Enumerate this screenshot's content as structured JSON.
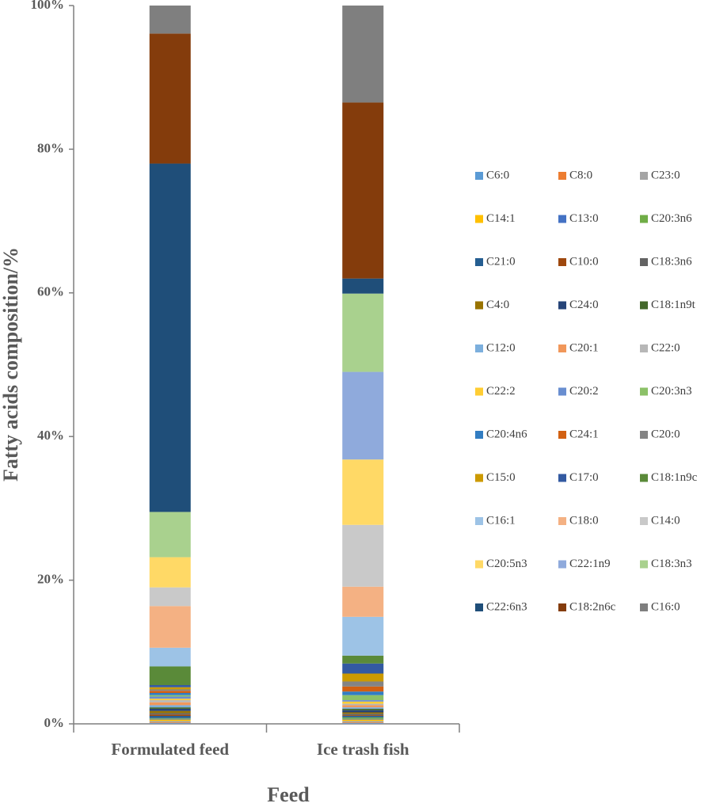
{
  "chart_data": {
    "type": "stacked_bar_100",
    "x_label": "Feed",
    "y_label": "Fatty acids composition/%",
    "categories": [
      "Formulated feed",
      "Ice trash fish"
    ],
    "ylim": [
      0,
      100
    ],
    "yticks": [
      {
        "value": 0,
        "label": "0%"
      },
      {
        "value": 20,
        "label": "20%"
      },
      {
        "value": 40,
        "label": "40%"
      },
      {
        "value": 60,
        "label": "60%"
      },
      {
        "value": 80,
        "label": "80%"
      },
      {
        "value": 100,
        "label": "100%"
      }
    ],
    "legend_position": "right",
    "series": [
      {
        "name": "C6:0",
        "color": "#5b9bd5",
        "values": [
          0.1,
          0.1
        ]
      },
      {
        "name": "C8:0",
        "color": "#ed7d31",
        "values": [
          0.1,
          0.1
        ]
      },
      {
        "name": "C23:0",
        "color": "#a5a5a5",
        "values": [
          0.2,
          0.2
        ]
      },
      {
        "name": "C14:1",
        "color": "#ffc000",
        "values": [
          0.2,
          0.2
        ]
      },
      {
        "name": "C13:0",
        "color": "#4472c4",
        "values": [
          0.1,
          0.1
        ]
      },
      {
        "name": "C20:3n6",
        "color": "#70ad47",
        "values": [
          0.1,
          0.2
        ]
      },
      {
        "name": "C21:0",
        "color": "#255e91",
        "values": [
          0.3,
          0.2
        ]
      },
      {
        "name": "C10:0",
        "color": "#9e480e",
        "values": [
          0.2,
          0.1
        ]
      },
      {
        "name": "C18:3n6",
        "color": "#636363",
        "values": [
          0.2,
          0.2
        ]
      },
      {
        "name": "C4:0",
        "color": "#997300",
        "values": [
          0.3,
          0.2
        ]
      },
      {
        "name": "C24:0",
        "color": "#264478",
        "values": [
          0.3,
          0.3
        ]
      },
      {
        "name": "C18:1n9t",
        "color": "#43682b",
        "values": [
          0.2,
          0.2
        ]
      },
      {
        "name": "C12:0",
        "color": "#7cafdd",
        "values": [
          0.3,
          0.2
        ]
      },
      {
        "name": "C20:1",
        "color": "#f1975a",
        "values": [
          0.4,
          0.3
        ]
      },
      {
        "name": "C22:0",
        "color": "#b7b7b7",
        "values": [
          0.3,
          0.2
        ]
      },
      {
        "name": "C22:2",
        "color": "#ffcd33",
        "values": [
          0.2,
          0.3
        ]
      },
      {
        "name": "C20:2",
        "color": "#698ed0",
        "values": [
          0.3,
          0.2
        ]
      },
      {
        "name": "C20:3n3",
        "color": "#8cc168",
        "values": [
          0.2,
          0.7
        ]
      },
      {
        "name": "C20:4n6",
        "color": "#327dc2",
        "values": [
          0.3,
          0.5
        ]
      },
      {
        "name": "C24:1",
        "color": "#d26012",
        "values": [
          0.3,
          0.7
        ]
      },
      {
        "name": "C20:0",
        "color": "#848484",
        "values": [
          0.2,
          0.7
        ]
      },
      {
        "name": "C15:0",
        "color": "#cc9a00",
        "values": [
          0.3,
          1.1
        ]
      },
      {
        "name": "C17:0",
        "color": "#335aa1",
        "values": [
          0.3,
          1.4
        ]
      },
      {
        "name": "C18:1n9c",
        "color": "#5a8a39",
        "values": [
          2.6,
          1.1
        ]
      },
      {
        "name": "C16:1",
        "color": "#9dc3e6",
        "values": [
          2.6,
          5.4
        ]
      },
      {
        "name": "C18:0",
        "color": "#f4b183",
        "values": [
          5.8,
          4.2
        ]
      },
      {
        "name": "C14:0",
        "color": "#c9c9c9",
        "values": [
          2.6,
          8.6
        ]
      },
      {
        "name": "C20:5n3",
        "color": "#ffd966",
        "values": [
          4.2,
          9.1
        ]
      },
      {
        "name": "C22:1n9",
        "color": "#8faadc",
        "values": [
          0,
          12.2
        ]
      },
      {
        "name": "C18:3n3",
        "color": "#a9d18e",
        "values": [
          6.3,
          10.9
        ]
      },
      {
        "name": "C22:6n3",
        "color": "#1f4e79",
        "values": [
          48.5,
          2.1
        ]
      },
      {
        "name": "C18:2n6c",
        "color": "#843c0c",
        "values": [
          18.1,
          24.5
        ]
      },
      {
        "name": "C16:0",
        "color": "#7f7f7f",
        "values": [
          3.9,
          13.5
        ]
      }
    ]
  }
}
